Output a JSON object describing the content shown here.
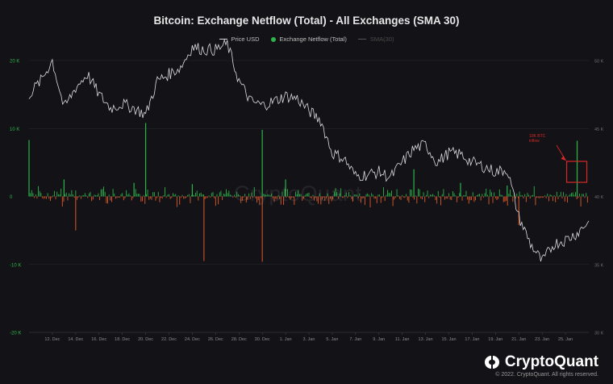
{
  "chart_data": {
    "type": "bar+line",
    "title": "Bitcoin: Exchange Netflow (Total) - All Exchanges (SMA 30)",
    "legend": [
      {
        "name": "Price USD",
        "color": "#d8d8d8",
        "style": "line"
      },
      {
        "name": "Exchange Netflow (Total)",
        "color": "#2db34a",
        "style": "dot"
      },
      {
        "name": "SMA(30)",
        "color": "#555555",
        "style": "line-faint"
      }
    ],
    "legend_placement": "top-center",
    "left_axis": {
      "ticks": [
        "20 K",
        "10 K",
        "0",
        "-10 K",
        "-20 K"
      ],
      "values": [
        20000,
        10000,
        0,
        -10000,
        -20000
      ],
      "ylim": [
        -20000,
        20000
      ],
      "color": "#2db34a"
    },
    "right_axis": {
      "ticks": [
        "50 K",
        "45 K",
        "40 K",
        "35 K",
        "30 K"
      ],
      "values": [
        50000,
        45000,
        40000,
        35000,
        30000
      ],
      "ylim": [
        30000,
        50000
      ],
      "color": "#6e6e6e"
    },
    "x_ticks": [
      "12. Dec",
      "14. Dec",
      "16. Dec",
      "18. Dec",
      "20. Dec",
      "22. Dec",
      "24. Dec",
      "26. Dec",
      "28. Dec",
      "30. Dec",
      "1. Jan",
      "3. Jan",
      "5. Jan",
      "7. Jan",
      "9. Jan",
      "11. Jan",
      "13. Jan",
      "15. Jan",
      "17. Jan",
      "19. Jan",
      "21. Jan",
      "23. Jan",
      "25. Jan"
    ],
    "x_range": [
      "2021-12-10",
      "2022-01-27"
    ],
    "grid": true,
    "price_series": {
      "name": "Price USD",
      "x": [
        "2021-12-10",
        "2021-12-11",
        "2021-12-12",
        "2021-12-13",
        "2021-12-14",
        "2021-12-15",
        "2021-12-16",
        "2021-12-17",
        "2021-12-18",
        "2021-12-19",
        "2021-12-20",
        "2021-12-21",
        "2021-12-22",
        "2021-12-23",
        "2021-12-24",
        "2021-12-25",
        "2021-12-26",
        "2021-12-27",
        "2021-12-28",
        "2021-12-29",
        "2021-12-30",
        "2021-12-31",
        "2022-01-01",
        "2022-01-02",
        "2022-01-03",
        "2022-01-04",
        "2022-01-05",
        "2022-01-06",
        "2022-01-07",
        "2022-01-08",
        "2022-01-09",
        "2022-01-10",
        "2022-01-11",
        "2022-01-12",
        "2022-01-13",
        "2022-01-14",
        "2022-01-15",
        "2022-01-16",
        "2022-01-17",
        "2022-01-18",
        "2022-01-19",
        "2022-01-20",
        "2022-01-21",
        "2022-01-22",
        "2022-01-23",
        "2022-01-24",
        "2022-01-25",
        "2022-01-26",
        "2022-01-27"
      ],
      "values": [
        47500,
        48500,
        50000,
        46500,
        48000,
        49000,
        47500,
        46500,
        46800,
        46500,
        46000,
        48500,
        49000,
        49500,
        51000,
        50800,
        50800,
        51200,
        48500,
        47000,
        46700,
        47000,
        47400,
        47200,
        46300,
        45600,
        43200,
        42800,
        41500,
        41600,
        41800,
        41400,
        42500,
        43500,
        43800,
        42500,
        43200,
        43100,
        42500,
        42200,
        41800,
        42000,
        38500,
        36500,
        35200,
        36500,
        36800,
        37300,
        38200
      ]
    },
    "netflow_series": {
      "name": "Exchange Netflow (Total)",
      "x": [
        "2021-12-10",
        "2021-12-13",
        "2021-12-19",
        "2021-12-20",
        "2021-12-24",
        "2021-12-30",
        "2022-01-01",
        "2022-01-12",
        "2022-01-16",
        "2022-01-20",
        "2022-01-26"
      ],
      "values": [
        8300,
        2500,
        2000,
        10800,
        1800,
        9800,
        2500,
        4000,
        2000,
        1600,
        8200
      ],
      "positive_color": "#2db34a",
      "negative_color": "#e05a2b"
    },
    "outflow_spikes": {
      "x": [
        "2021-12-14",
        "2021-12-25",
        "2021-12-30",
        "2022-01-21"
      ],
      "values": [
        -5000,
        -9500,
        -9600,
        -4200
      ]
    },
    "annotation": {
      "text": "10K BTC inflow",
      "color": "#d62828"
    }
  },
  "watermark": "CryptoQuant",
  "brand": "CryptoQuant",
  "copyright": "© 2022. CryptoQuant. All rights reserved."
}
